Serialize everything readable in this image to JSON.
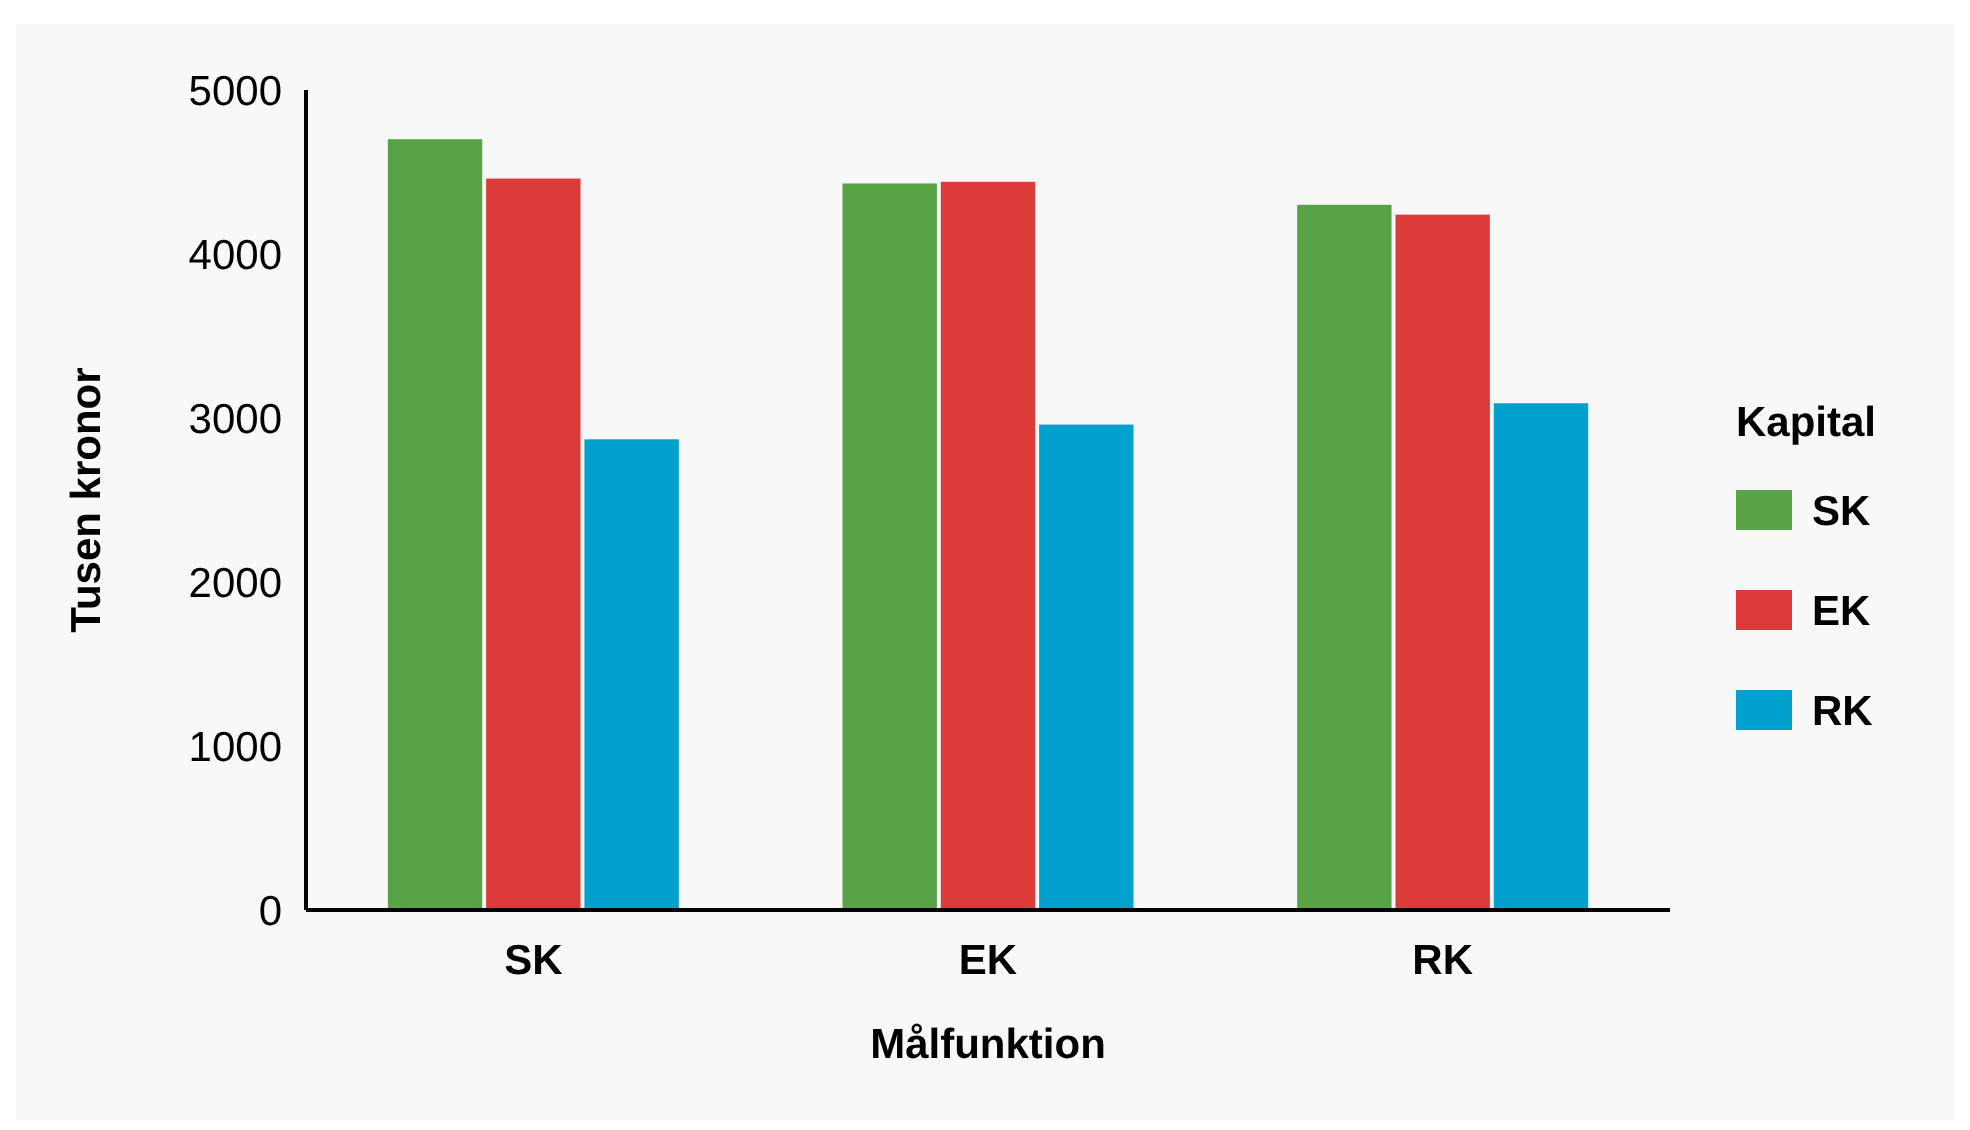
{
  "chart_data": {
    "type": "bar",
    "xlabel": "Målfunktion",
    "ylabel": "Tusen kronor",
    "legend_title": "Kapital",
    "legend": "right",
    "categories": [
      "SK",
      "EK",
      "RK"
    ],
    "series": [
      {
        "name": "SK",
        "color": "#57a346",
        "values": [
          4700,
          4430,
          4300
        ]
      },
      {
        "name": "EK",
        "color": "#dd3b3a",
        "values": [
          4460,
          4440,
          4240
        ]
      },
      {
        "name": "RK",
        "color": "#00a1cc",
        "values": [
          2870,
          2960,
          3090
        ]
      }
    ],
    "ylim": [
      0,
      5000
    ],
    "yticks": [
      0,
      1000,
      2000,
      3000,
      4000,
      5000
    ],
    "grid": false
  }
}
